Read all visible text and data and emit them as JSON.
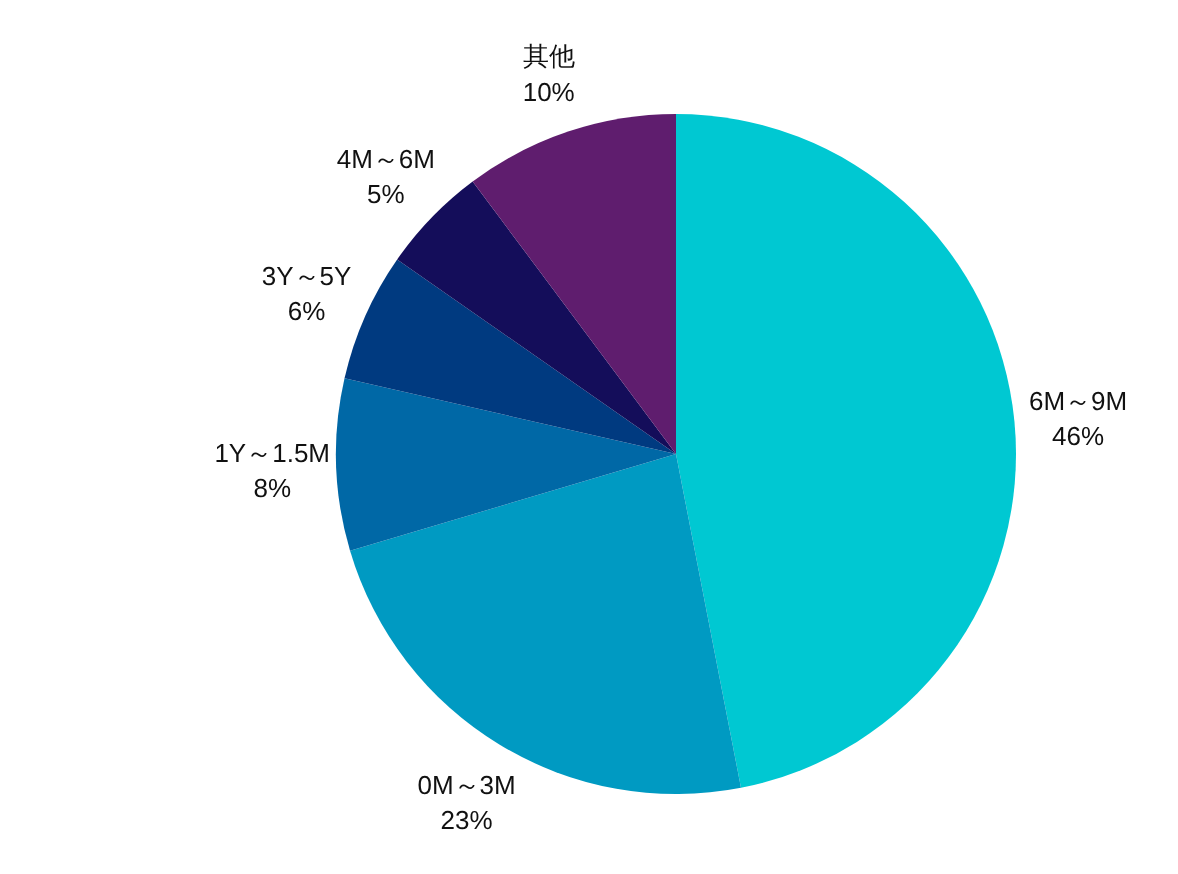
{
  "chart_data": {
    "type": "pie",
    "categories": [
      "6M～9M",
      "0M～3M",
      "1Y～1.5M",
      "3Y～5Y",
      "4M～6M",
      "其他"
    ],
    "values": [
      46,
      23,
      8,
      6,
      5,
      10
    ],
    "value_labels": [
      "46%",
      "23%",
      "8%",
      "6%",
      "5%",
      "10%"
    ],
    "colors": [
      "#00c8d2",
      "#009ac2",
      "#0068a6",
      "#003a80",
      "#140d5a",
      "#5f1d6e"
    ]
  }
}
